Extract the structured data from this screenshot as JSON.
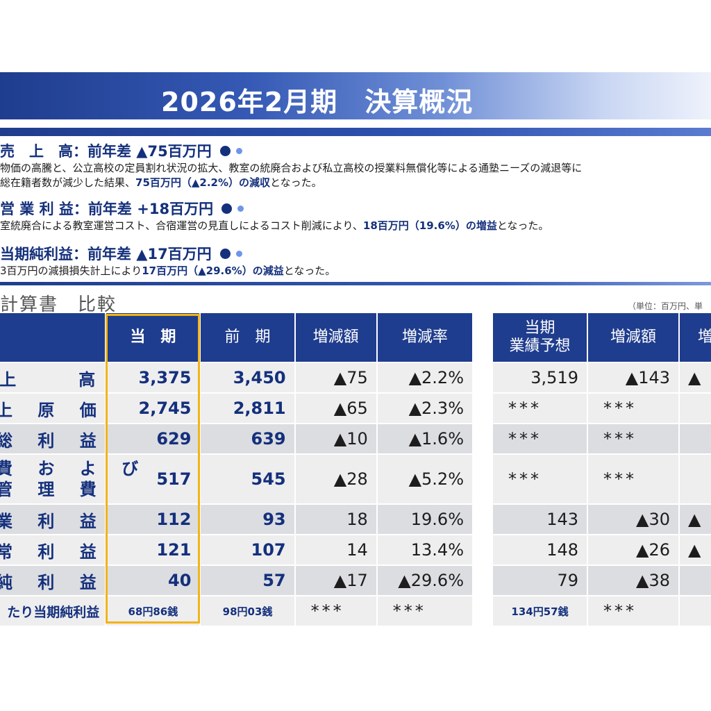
{
  "title": "2026年2月期　決算概況",
  "sections": [
    {
      "heading": "売　上　高：前年差 ▲75百万円",
      "lines": [
        {
          "pre": "物価の高騰と、公立高校の定員割れ状況の拡大、教室の統廃合および私立高校の授業料無償化等による通塾ニーズの減退等に",
          "bold": "",
          "post": ""
        },
        {
          "pre": "総在籍者数が減少した結果、",
          "bold": "75百万円（▲2.2%）の減収",
          "post": "となった。"
        }
      ]
    },
    {
      "heading": "営 業 利 益：前年差 +18百万円",
      "lines": [
        {
          "pre": "室統廃合による教室運営コスト、合宿運営の見直しによるコスト削減により、",
          "bold": "18百万円（19.6%）の増益",
          "post": "となった。"
        }
      ]
    },
    {
      "heading": "当期純利益：前年差 ▲17百万円",
      "lines": [
        {
          "pre": "3百万円の減損損失計上により",
          "bold": "17百万円（▲29.6%）の減益",
          "post": "となった。"
        }
      ]
    }
  ],
  "subtitle": "計算書　比較",
  "unit_note": "（単位：百万円、単",
  "table": {
    "headers": [
      "当　期",
      "前　期",
      "増減額",
      "増減率"
    ],
    "rows": [
      {
        "label": "上　　高",
        "cur": "3,375",
        "prev": "3,450",
        "diff": "▲75",
        "rate": "▲2.2%"
      },
      {
        "label": "上 原 価",
        "cur": "2,745",
        "prev": "2,811",
        "diff": "▲65",
        "rate": "▲2.3%"
      },
      {
        "label": "総 利 益",
        "cur": "629",
        "prev": "639",
        "diff": "▲10",
        "rate": "▲1.6%"
      },
      {
        "label1": "費 お よ び",
        "label2": "管 理 費",
        "cur": "517",
        "prev": "545",
        "diff": "▲28",
        "rate": "▲5.2%"
      },
      {
        "label": "業 利 益",
        "cur": "112",
        "prev": "93",
        "diff": "18",
        "rate": "19.6%"
      },
      {
        "label": "常 利 益",
        "cur": "121",
        "prev": "107",
        "diff": "14",
        "rate": "13.4%"
      },
      {
        "label": "純 利 益",
        "cur": "40",
        "prev": "57",
        "diff": "▲17",
        "rate": "▲29.6%"
      },
      {
        "label": "たり当期純利益",
        "cur": "68円86銭",
        "prev": "98円03銭",
        "diff": "***",
        "rate": "***"
      }
    ]
  },
  "forecast": {
    "headers": [
      "当期\n業績予想",
      "増減額",
      "増"
    ],
    "rows": [
      {
        "plan": "3,519",
        "diff": "▲143",
        "extra": "▲"
      },
      {
        "plan": "***",
        "diff": "***",
        "extra": ""
      },
      {
        "plan": "***",
        "diff": "***",
        "extra": ""
      },
      {
        "plan": "***",
        "diff": "***",
        "extra": ""
      },
      {
        "plan": "143",
        "diff": "▲30",
        "extra": "▲"
      },
      {
        "plan": "148",
        "diff": "▲26",
        "extra": "▲"
      },
      {
        "plan": "79",
        "diff": "▲38",
        "extra": ""
      },
      {
        "plan": "134円57銭",
        "diff": "***",
        "extra": ""
      }
    ]
  },
  "colors": {
    "navy": "#1f3d8e",
    "highlight": "#f2b417"
  }
}
